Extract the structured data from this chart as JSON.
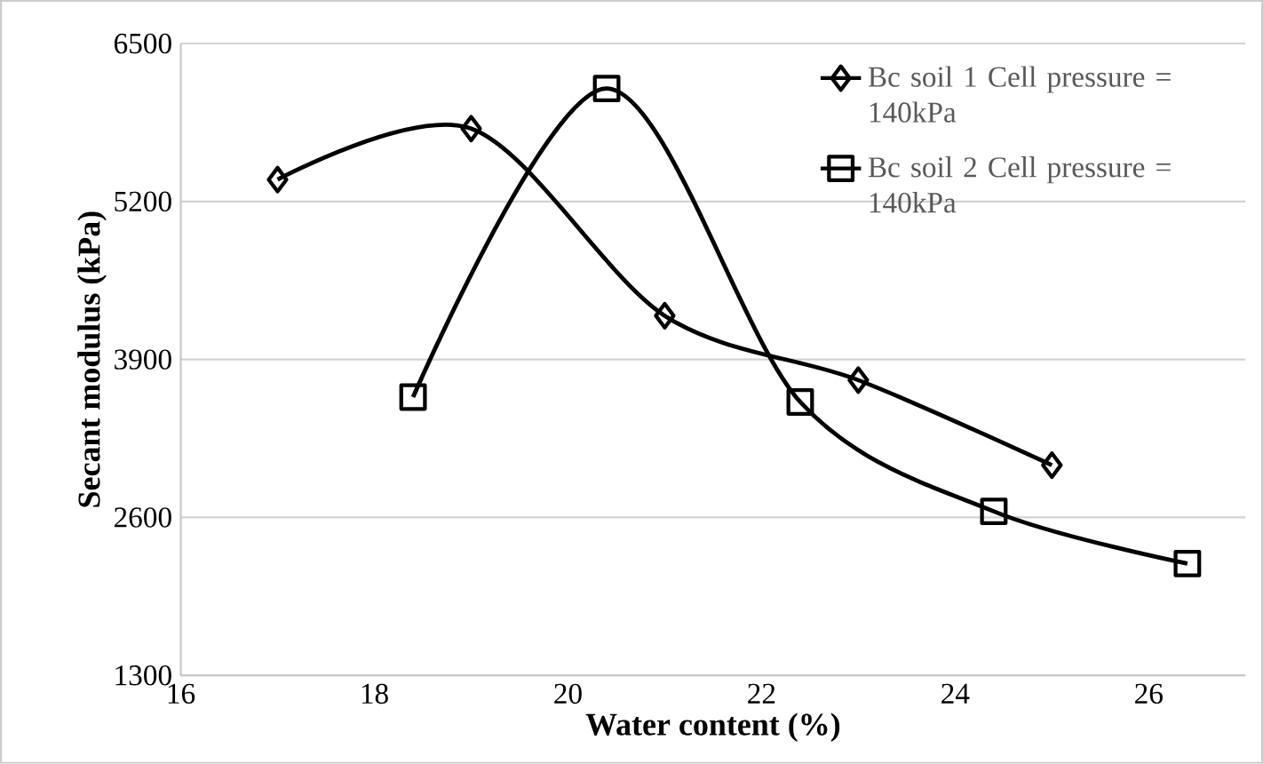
{
  "chart_data": {
    "type": "line",
    "xlabel": "Water content (%)",
    "ylabel": "Secant modulus (kPa)",
    "xlim": [
      16,
      27
    ],
    "xticks": [
      16,
      18,
      20,
      22,
      24,
      26
    ],
    "ylim": [
      1300,
      6500
    ],
    "yticks": [
      1300,
      2600,
      3900,
      5200,
      6500
    ],
    "grid": "y",
    "legend": "top right",
    "series": [
      {
        "name": "Bc soil 1 Cell pressure = 140kPa",
        "color": "#000000",
        "marker": "diamond",
        "x": [
          17,
          19,
          21,
          23,
          25
        ],
        "values": [
          5380,
          5800,
          4260,
          3730,
          3030
        ]
      },
      {
        "name": "Bc soil 2 Cell pressure = 140kPa",
        "color": "#000000",
        "marker": "square",
        "x": [
          18.4,
          20.4,
          22.4,
          24.4,
          26.4
        ],
        "values": [
          3590,
          6130,
          3550,
          2650,
          2220
        ]
      }
    ]
  }
}
